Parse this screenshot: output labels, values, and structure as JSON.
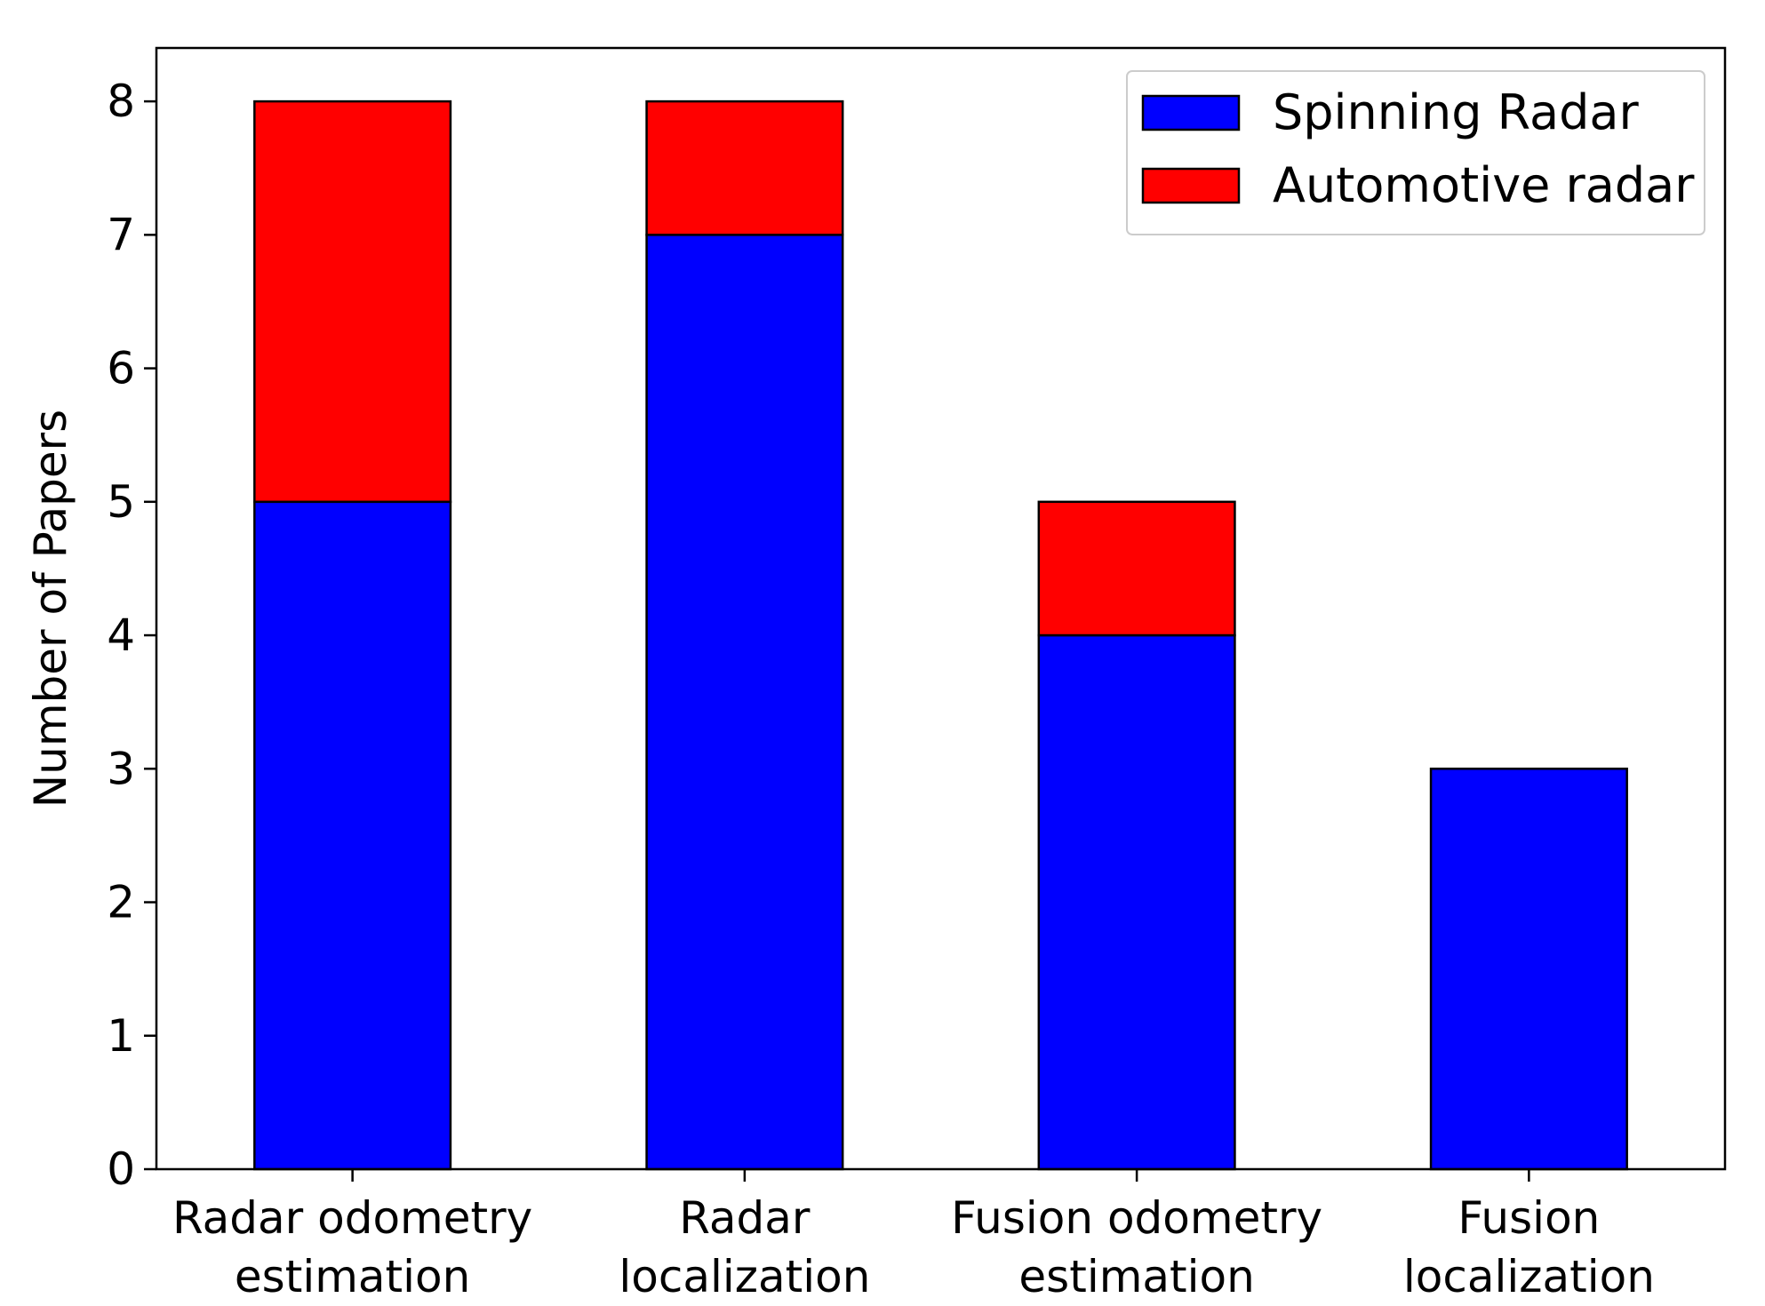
{
  "chart_data": {
    "type": "bar",
    "stacked": true,
    "title": "",
    "xlabel": "",
    "ylabel": "Number of Papers",
    "categories": [
      [
        "Radar odometry",
        "estimation"
      ],
      [
        "Radar",
        "localization"
      ],
      [
        "Fusion odometry",
        "estimation"
      ],
      [
        "Fusion",
        "localization"
      ]
    ],
    "series": [
      {
        "name": "Spinning Radar",
        "color": "#0000ff",
        "values": [
          5,
          7,
          4,
          3
        ]
      },
      {
        "name": "Automotive radar",
        "color": "#ff0000",
        "values": [
          3,
          1,
          1,
          0
        ]
      }
    ],
    "ylim": [
      0,
      8.4
    ],
    "yticks": [
      0,
      1,
      2,
      3,
      4,
      5,
      6,
      7,
      8
    ],
    "grid": false,
    "legend_position": "top-right"
  }
}
